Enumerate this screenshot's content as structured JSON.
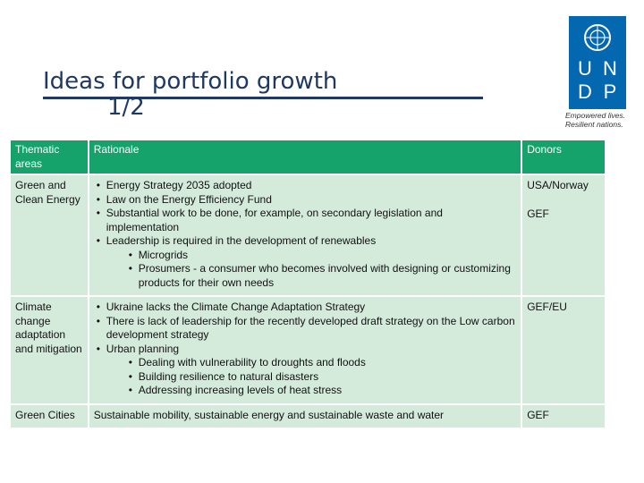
{
  "header": {
    "title": "Ideas for portfolio growth",
    "subtitle": "1/2"
  },
  "logo": {
    "letters": [
      "U",
      "N",
      "D",
      "P"
    ],
    "tagline": [
      "Empowered lives.",
      "Resilient nations."
    ]
  },
  "table": {
    "columns": [
      "Thematic areas",
      "Rationale",
      "Donors"
    ],
    "rows": [
      {
        "area": "Green and Clean Energy",
        "rationale": [
          {
            "text": "Energy Strategy 2035 adopted"
          },
          {
            "text": "Law on the Energy Efficiency Fund"
          },
          {
            "text": "Substantial work to be done, for example, on secondary legislation and implementation"
          },
          {
            "text": "Leadership is required in the development of renewables",
            "sub": [
              "Microgrids",
              "Prosumers - a consumer who becomes involved with designing or customizing products for their own needs"
            ]
          }
        ],
        "donors": [
          "USA/Norway",
          "GEF"
        ]
      },
      {
        "area": "Climate change adaptation and mitigation",
        "rationale": [
          {
            "text": "Ukraine lacks the Climate Change Adaptation Strategy"
          },
          {
            "text": "There is lack of leadership for the recently developed draft strategy on the Low carbon development strategy"
          },
          {
            "text": "Urban planning",
            "sub": [
              "Dealing with vulnerability to droughts and floods",
              "Building resilience to natural disasters",
              "Addressing increasing levels of heat stress"
            ]
          }
        ],
        "donors": [
          "GEF/EU"
        ]
      },
      {
        "area": "Green Cities",
        "rationale_text": "Sustainable mobility, sustainable energy and sustainable waste and water",
        "donors": [
          "GEF"
        ]
      }
    ]
  }
}
